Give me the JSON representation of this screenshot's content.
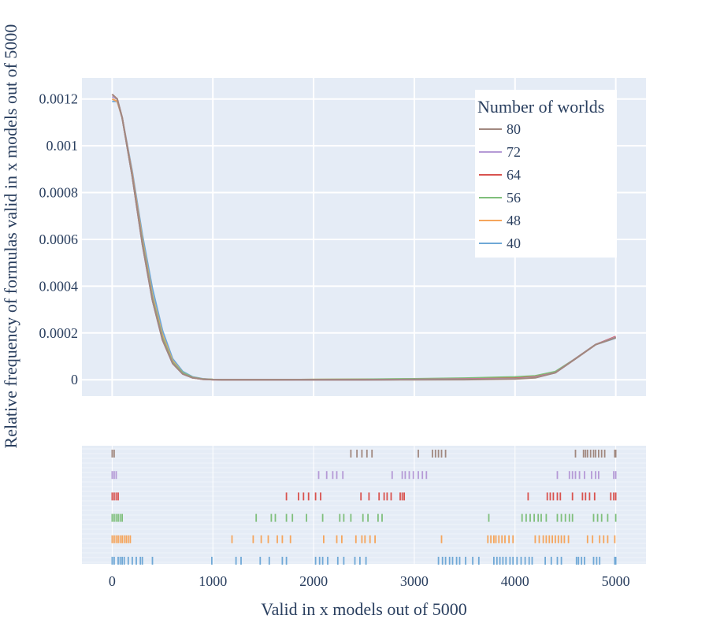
{
  "chart_data": {
    "type": "line",
    "xlabel": "Valid in x models out of 5000",
    "ylabel": "Relative frequency of formulas valid in x models out of 5000",
    "xlim": [
      -300,
      5300
    ],
    "ylim": [
      -7e-05,
      0.00129
    ],
    "x_ticks": [
      0,
      1000,
      2000,
      3000,
      4000,
      5000
    ],
    "x_tick_labels": [
      "0",
      "1000",
      "2000",
      "3000",
      "4000",
      "5000"
    ],
    "y_ticks": [
      0,
      0.0002,
      0.0004,
      0.0006,
      0.0008,
      0.001,
      0.0012
    ],
    "y_tick_labels": [
      "0",
      "0.0002",
      "0.0004",
      "0.0006",
      "0.0008",
      "0.001",
      "0.0012"
    ],
    "grid": true,
    "legend": {
      "title": "Number of worlds",
      "placement": "top-right"
    },
    "series": [
      {
        "name": "80",
        "color": "#a1887f",
        "x": [
          0,
          50,
          100,
          200,
          300,
          400,
          500,
          600,
          700,
          800,
          900,
          1000,
          1100,
          1500,
          2000,
          2500,
          3000,
          3500,
          4000,
          4200,
          4400,
          4600,
          4800,
          5000
        ],
        "y": [
          0.00122,
          0.0012,
          0.00112,
          0.00087,
          0.00058,
          0.00034,
          0.00017,
          7e-05,
          2.5e-05,
          8e-06,
          2e-06,
          5e-07,
          0,
          0,
          0,
          0,
          0,
          5e-07,
          3e-06,
          8e-06,
          3e-05,
          9e-05,
          0.00015,
          0.00018
        ]
      },
      {
        "name": "72",
        "color": "#b59ad6",
        "x": [
          0,
          50,
          100,
          200,
          300,
          400,
          500,
          600,
          700,
          800,
          900,
          1000,
          1100,
          1500,
          2000,
          2500,
          3000,
          3500,
          4000,
          4200,
          4400,
          4600,
          4800,
          5000
        ],
        "y": [
          0.00121,
          0.0012,
          0.00112,
          0.00087,
          0.00058,
          0.00034,
          0.00017,
          7e-05,
          2.5e-05,
          8e-06,
          2e-06,
          5e-07,
          0,
          0,
          0,
          0,
          1e-06,
          2e-06,
          4e-06,
          1e-05,
          3e-05,
          9e-05,
          0.00015,
          0.000182
        ]
      },
      {
        "name": "64",
        "color": "#d9534f",
        "x": [
          0,
          50,
          100,
          200,
          300,
          400,
          500,
          600,
          700,
          800,
          900,
          1000,
          1100,
          1500,
          2000,
          2500,
          3000,
          3500,
          4000,
          4200,
          4400,
          4600,
          4800,
          5000
        ],
        "y": [
          0.00122,
          0.0012,
          0.00112,
          0.00087,
          0.00058,
          0.00034,
          0.00017,
          7e-05,
          2.5e-05,
          8e-06,
          2e-06,
          5e-07,
          0,
          0,
          0,
          0,
          1e-06,
          3e-06,
          6e-06,
          1.2e-05,
          3e-05,
          9e-05,
          0.00015,
          0.000185
        ]
      },
      {
        "name": "56",
        "color": "#7fbf7b",
        "x": [
          0,
          50,
          100,
          200,
          300,
          400,
          500,
          600,
          700,
          800,
          900,
          1000,
          1100,
          1500,
          2000,
          2500,
          3000,
          3500,
          4000,
          4200,
          4400,
          4600,
          4800,
          5000
        ],
        "y": [
          0.00121,
          0.0012,
          0.00112,
          0.00087,
          0.00059,
          0.00035,
          0.00018,
          7.5e-05,
          3e-05,
          1e-05,
          3e-06,
          1e-06,
          0,
          0,
          1e-06,
          2e-06,
          4e-06,
          7e-06,
          1.2e-05,
          1.7e-05,
          3.5e-05,
          9e-05,
          0.00015,
          0.000182
        ]
      },
      {
        "name": "48",
        "color": "#f5a55c",
        "x": [
          0,
          50,
          100,
          200,
          300,
          400,
          500,
          600,
          700,
          800,
          900,
          1000,
          1100,
          1500,
          2000,
          2500,
          3000,
          3500,
          4000,
          4200,
          4400,
          4600,
          4800,
          5000
        ],
        "y": [
          0.0012,
          0.00119,
          0.00112,
          0.00088,
          0.0006,
          0.00036,
          0.00019,
          8e-05,
          3e-05,
          1e-05,
          3e-06,
          1e-06,
          0,
          0,
          1e-06,
          2e-06,
          3e-06,
          5e-06,
          1e-05,
          1.5e-05,
          3e-05,
          9e-05,
          0.00015,
          0.00018
        ]
      },
      {
        "name": "40",
        "color": "#6fa8d6",
        "x": [
          0,
          50,
          100,
          200,
          300,
          400,
          500,
          600,
          700,
          800,
          900,
          1000,
          1100,
          1500,
          2000,
          2500,
          3000,
          3500,
          4000,
          4200,
          4400,
          4600,
          4800,
          5000
        ],
        "y": [
          0.00119,
          0.00119,
          0.00112,
          0.00089,
          0.00062,
          0.00039,
          0.00021,
          9e-05,
          3.5e-05,
          1.2e-05,
          4e-06,
          1e-06,
          0,
          0,
          0,
          0,
          1e-06,
          2e-06,
          4e-06,
          1e-05,
          3e-05,
          9e-05,
          0.00015,
          0.000178
        ]
      }
    ],
    "rug": [
      {
        "name": "80",
        "color": "#a1887f",
        "x": [
          0,
          20,
          2370,
          2430,
          2480,
          2530,
          2580,
          3040,
          3180,
          3210,
          3240,
          3270,
          3310,
          4600,
          4680,
          4700,
          4720,
          4750,
          4780,
          4800,
          4830,
          4860,
          4890,
          4990,
          5000
        ]
      },
      {
        "name": "72",
        "color": "#b59ad6",
        "x": [
          0,
          20,
          40,
          2050,
          2130,
          2190,
          2230,
          2290,
          2780,
          2880,
          2910,
          2950,
          2990,
          3040,
          3080,
          3120,
          4420,
          4540,
          4570,
          4600,
          4640,
          4690,
          4760,
          4800,
          4830,
          4980,
          5000
        ]
      },
      {
        "name": "64",
        "color": "#d9534f",
        "x": [
          0,
          20,
          40,
          60,
          1730,
          1850,
          1900,
          1950,
          2020,
          2070,
          2470,
          2550,
          2650,
          2700,
          2730,
          2770,
          2860,
          2880,
          2900,
          4130,
          4320,
          4350,
          4380,
          4420,
          4450,
          4570,
          4670,
          4700,
          4740,
          4790,
          4950,
          4980,
          5000
        ]
      },
      {
        "name": "56",
        "color": "#7fbf7b",
        "x": [
          0,
          20,
          40,
          60,
          80,
          100,
          1430,
          1580,
          1620,
          1730,
          1790,
          1930,
          2090,
          2260,
          2300,
          2370,
          2490,
          2540,
          2640,
          2680,
          3740,
          4070,
          4110,
          4150,
          4190,
          4230,
          4260,
          4310,
          4420,
          4460,
          4500,
          4540,
          4570,
          4780,
          4820,
          4860,
          4920,
          5000
        ]
      },
      {
        "name": "48",
        "color": "#f5a55c",
        "x": [
          0,
          20,
          40,
          60,
          80,
          100,
          120,
          140,
          160,
          180,
          1190,
          1400,
          1480,
          1550,
          1640,
          1690,
          1770,
          2100,
          2230,
          2280,
          2420,
          2480,
          2510,
          2560,
          2610,
          3270,
          3730,
          3760,
          3790,
          3810,
          3840,
          3870,
          3900,
          3940,
          3980,
          4200,
          4240,
          4280,
          4310,
          4340,
          4370,
          4400,
          4430,
          4460,
          4490,
          4530,
          4720,
          4770,
          4840,
          4880,
          4920,
          4990
        ]
      },
      {
        "name": "40",
        "color": "#6fa8d6",
        "x": [
          0,
          20,
          60,
          80,
          100,
          120,
          160,
          200,
          240,
          280,
          300,
          400,
          990,
          1230,
          1280,
          1470,
          1560,
          1690,
          1730,
          2020,
          2060,
          2090,
          2140,
          2240,
          2300,
          2410,
          2460,
          2520,
          3240,
          3280,
          3310,
          3350,
          3380,
          3420,
          3450,
          3510,
          3580,
          3640,
          3790,
          3820,
          3850,
          3880,
          3910,
          3950,
          3980,
          4020,
          4060,
          4100,
          4140,
          4170,
          4300,
          4360,
          4420,
          4460,
          4610,
          4630,
          4660,
          4690,
          4780,
          4810,
          4840,
          4990,
          5000
        ]
      }
    ]
  }
}
